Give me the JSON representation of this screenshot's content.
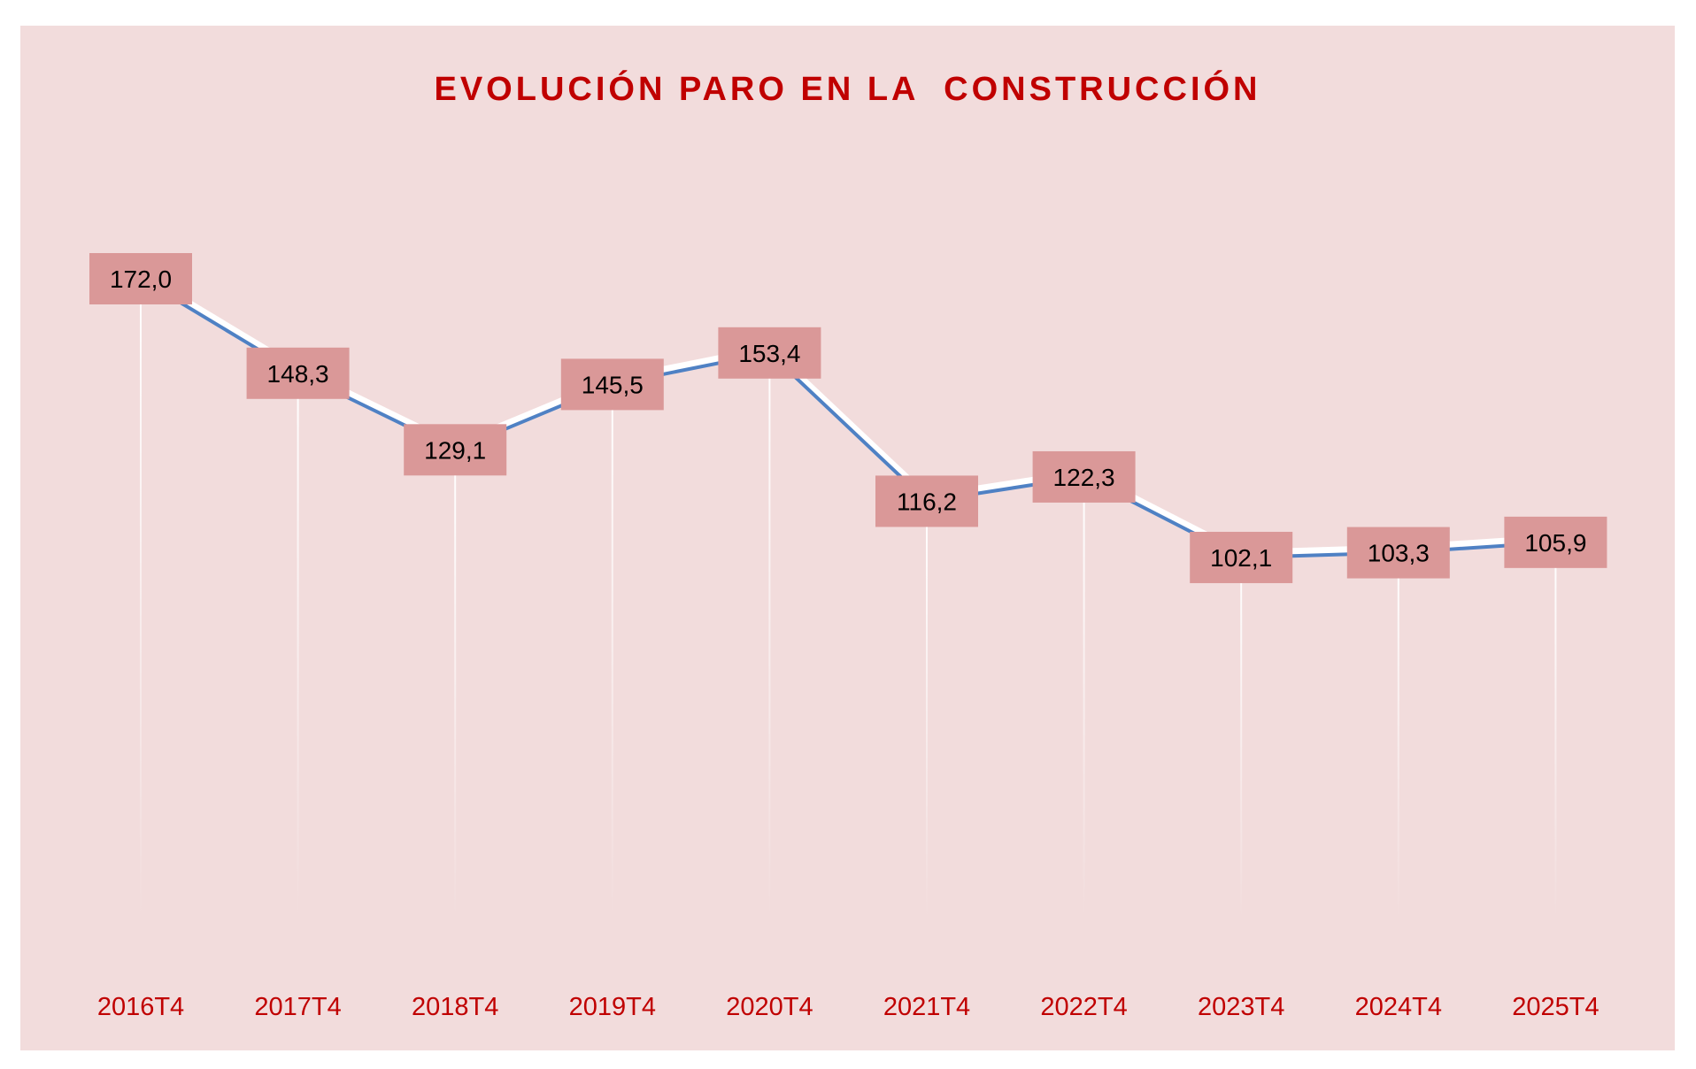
{
  "chart_data": {
    "type": "line",
    "title": "EVOLUCIÓN PARO EN LA  CONSTRUCCIÓN",
    "categories": [
      "2016T4",
      "2017T4",
      "2018T4",
      "2019T4",
      "2020T4",
      "2021T4",
      "2022T4",
      "2023T4",
      "2024T4",
      "2025T4"
    ],
    "values": [
      172.0,
      148.3,
      129.1,
      145.5,
      153.4,
      116.2,
      122.3,
      102.1,
      103.3,
      105.9
    ],
    "data_labels": [
      "172,0",
      "148,3",
      "129,1",
      "145,5",
      "153,4",
      "116,2",
      "122,3",
      "102,1",
      "103,3",
      "105,9"
    ],
    "xlabel": "",
    "ylabel": "",
    "grid": false,
    "legend": "none",
    "colors": {
      "line": "#4f81c4",
      "shadow": "#ffffff",
      "label_box": "#da9898",
      "background": "#f2dcdc",
      "title": "#c00000",
      "tick": "#c00000"
    }
  }
}
